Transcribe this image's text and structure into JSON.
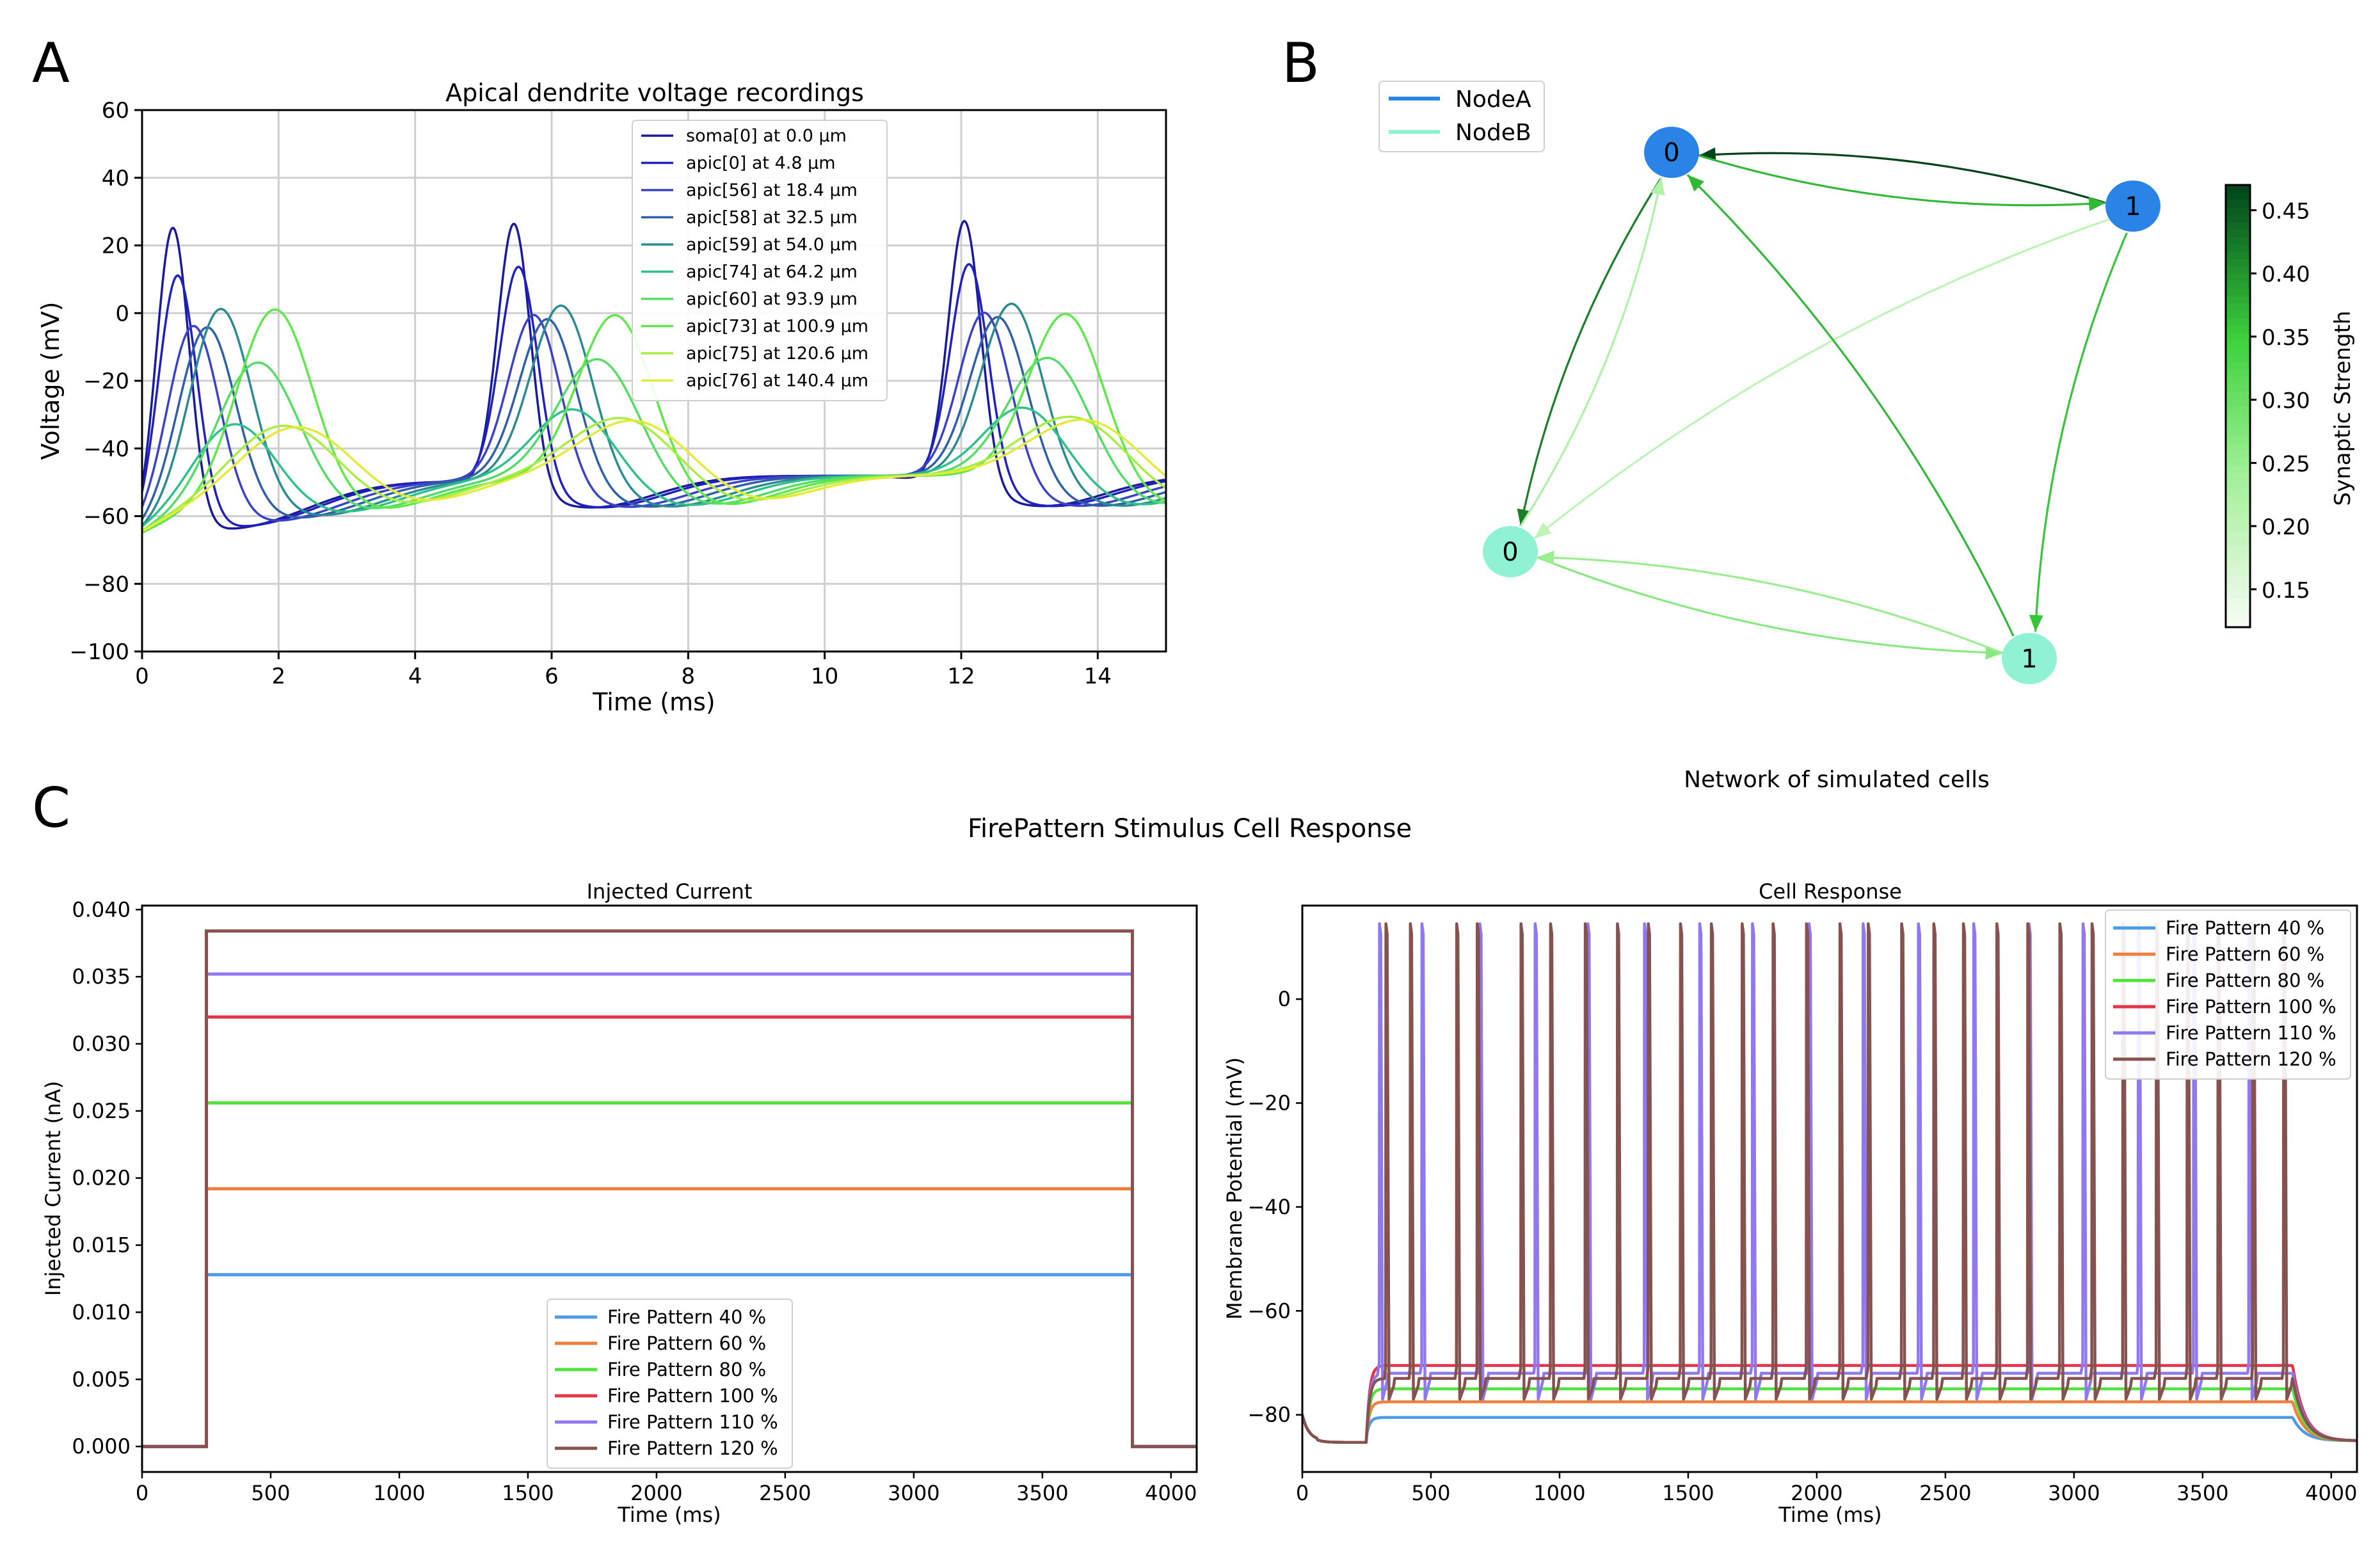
{
  "panel_labels": [
    "A",
    "B",
    "C"
  ],
  "figure_title": "FirePattern Stimulus Cell Response",
  "chart_data": [
    {
      "id": "A",
      "type": "line",
      "title": "Apical dendrite voltage recordings",
      "xlabel": "Time (ms)",
      "ylabel": "Voltage (mV)",
      "xlim": [
        0,
        15
      ],
      "ylim": [
        -100,
        60
      ],
      "xticks": [
        0,
        2,
        4,
        6,
        8,
        10,
        12,
        14
      ],
      "yticks": [
        -100,
        -80,
        -60,
        -40,
        -20,
        0,
        20,
        40,
        60
      ],
      "ytick_labels": [
        "−100",
        "−80",
        "−60",
        "−40",
        "−20",
        "0",
        "20",
        "40",
        "60"
      ],
      "grid": true,
      "legend_position": "upper-center",
      "spike_times": [
        0.0,
        5.0,
        11.6
      ],
      "series": [
        {
          "name": "soma[0] at 0.0 μm",
          "color": "#1a1a9a",
          "peak": 25,
          "delay": 0.45,
          "width": 0.24,
          "trough": -57,
          "trough_delay": 1.6
        },
        {
          "name": "apic[0] at 4.8 μm",
          "color": "#2020c0",
          "peak": 10,
          "delay": 0.52,
          "width": 0.28,
          "trough": -56,
          "trough_delay": 1.75
        },
        {
          "name": "apic[56] at 18.4 μm",
          "color": "#3b43c4",
          "peak": -7,
          "delay": 0.75,
          "width": 0.38,
          "trough": -54,
          "trough_delay": 2.1
        },
        {
          "name": "apic[58] at 32.5 μm",
          "color": "#2f5fa8",
          "peak": -9,
          "delay": 0.95,
          "width": 0.42,
          "trough": -52.5,
          "trough_delay": 2.4
        },
        {
          "name": "apic[59] at 54.0 μm",
          "color": "#2a8b90",
          "peak": -5,
          "delay": 1.15,
          "width": 0.45,
          "trough": -51.5,
          "trough_delay": 2.7
        },
        {
          "name": "apic[74] at 64.2 μm",
          "color": "#2fc089",
          "peak": -40,
          "delay": 1.35,
          "width": 0.6,
          "trough": -52,
          "trough_delay": 2.9
        },
        {
          "name": "apic[60] at 93.9 μm",
          "color": "#55dc66",
          "peak": -23,
          "delay": 1.7,
          "width": 0.6,
          "trough": -51,
          "trough_delay": 3.2
        },
        {
          "name": "apic[73] at 100.9 μm",
          "color": "#5ee84a",
          "peak": -8,
          "delay": 1.95,
          "width": 0.55,
          "trough": -50,
          "trough_delay": 3.4
        },
        {
          "name": "apic[75] at 120.6 μm",
          "color": "#a9ee44",
          "peak": -43,
          "delay": 2.1,
          "width": 0.8,
          "trough": -51,
          "trough_delay": 3.6
        },
        {
          "name": "apic[76] at 140.4 μm",
          "color": "#e4ea3a",
          "peak": -44,
          "delay": 2.3,
          "width": 0.85,
          "trough": -51,
          "trough_delay": 3.8
        }
      ]
    },
    {
      "id": "B",
      "type": "network",
      "xlabel": "Network of simulated cells",
      "legend_position": "upper-left",
      "legend": [
        {
          "name": "NodeA",
          "color": "#2a84e6"
        },
        {
          "name": "NodeB",
          "color": "#8ef2d3"
        }
      ],
      "colorbar": {
        "label": "Synaptic Strength",
        "range": [
          0.12,
          0.47
        ],
        "ticks": [
          "0.15",
          "0.20",
          "0.25",
          "0.30",
          "0.35",
          "0.40",
          "0.45"
        ],
        "tick_values": [
          0.15,
          0.2,
          0.25,
          0.3,
          0.35,
          0.4,
          0.45
        ]
      },
      "nodes": [
        {
          "id": "A0",
          "label": "0",
          "group": "NodeA"
        },
        {
          "id": "A1",
          "label": "1",
          "group": "NodeA"
        },
        {
          "id": "B0",
          "label": "0",
          "group": "NodeB"
        },
        {
          "id": "B1",
          "label": "1",
          "group": "NodeB"
        }
      ],
      "edges": [
        {
          "source": "A1",
          "target": "A0",
          "weight": 0.47
        },
        {
          "source": "A0",
          "target": "A1",
          "weight": 0.37
        },
        {
          "source": "A0",
          "target": "B0",
          "weight": 0.42
        },
        {
          "source": "B0",
          "target": "A0",
          "weight": 0.22
        },
        {
          "source": "A1",
          "target": "B0",
          "weight": 0.2
        },
        {
          "source": "A1",
          "target": "B1",
          "weight": 0.36
        },
        {
          "source": "B1",
          "target": "A0",
          "weight": 0.37
        },
        {
          "source": "B0",
          "target": "B1",
          "weight": 0.27
        },
        {
          "source": "B1",
          "target": "B0",
          "weight": 0.25
        }
      ]
    },
    {
      "id": "C1",
      "type": "line",
      "title": "Injected Current",
      "xlabel": "Time (ms)",
      "ylabel": "Injected Current (nA)",
      "xlim": [
        0,
        4100
      ],
      "ylim": [
        -0.0019,
        0.0403
      ],
      "xticks": [
        0,
        500,
        1000,
        1500,
        2000,
        2500,
        3000,
        3500,
        4000
      ],
      "yticks": [
        0.0,
        0.005,
        0.01,
        0.015,
        0.02,
        0.025,
        0.03,
        0.035,
        0.04
      ],
      "ytick_labels": [
        "0.000",
        "0.005",
        "0.010",
        "0.015",
        "0.020",
        "0.025",
        "0.030",
        "0.035",
        "0.040"
      ],
      "grid": false,
      "legend_position": "lower-center",
      "step_on": 250,
      "step_off": 3850,
      "series": [
        {
          "name": "Fire Pattern 40 %",
          "color": "#4c9be8",
          "value": 0.0128
        },
        {
          "name": "Fire Pattern 60 %",
          "color": "#f07f3e",
          "value": 0.0192
        },
        {
          "name": "Fire Pattern 80 %",
          "color": "#4fe33c",
          "value": 0.0256
        },
        {
          "name": "Fire Pattern 100 %",
          "color": "#e4344a",
          "value": 0.032
        },
        {
          "name": "Fire Pattern 110 %",
          "color": "#8f78f0",
          "value": 0.0352
        },
        {
          "name": "Fire Pattern 120 %",
          "color": "#85524f",
          "value": 0.0384
        }
      ]
    },
    {
      "id": "C2",
      "type": "line",
      "title": "Cell Response",
      "xlabel": "Time (ms)",
      "ylabel": "Membrane Potential (mV)",
      "xlim": [
        0,
        4100
      ],
      "ylim": [
        -91,
        18
      ],
      "xticks": [
        0,
        500,
        1000,
        1500,
        2000,
        2500,
        3000,
        3500,
        4000
      ],
      "yticks": [
        -80,
        -60,
        -40,
        -20,
        0
      ],
      "ytick_labels": [
        "−80",
        "−60",
        "−40",
        "−20",
        "0"
      ],
      "grid": false,
      "legend_position": "upper-right",
      "rest": -85,
      "spike_peak": 14.5,
      "step_on": 250,
      "step_off": 3850,
      "series": [
        {
          "name": "Fire Pattern 40 %",
          "color": "#4c9be8",
          "plateau": -80.5,
          "spikes": []
        },
        {
          "name": "Fire Pattern 60 %",
          "color": "#f07f3e",
          "plateau": -77.5,
          "spikes": []
        },
        {
          "name": "Fire Pattern 80 %",
          "color": "#4fe33c",
          "plateau": -75,
          "spikes": []
        },
        {
          "name": "Fire Pattern 100 %",
          "color": "#e4344a",
          "plateau": -70.5,
          "spikes": []
        },
        {
          "name": "Fire Pattern 110 %",
          "color": "#8f78f0",
          "plateau": -72,
          "spikes": [
            300,
            465,
            690,
            905,
            1110,
            1330,
            1545,
            1750,
            1970,
            2180,
            2395,
            2610,
            2825,
            3035,
            3250,
            3465,
            3680
          ]
        },
        {
          "name": "Fire Pattern 120 %",
          "color": "#85524f",
          "plateau": -73,
          "spikes": [
            325,
            420,
            600,
            680,
            850,
            965,
            1100,
            1225,
            1345,
            1470,
            1590,
            1710,
            1830,
            1960,
            2090,
            2200,
            2330,
            2455,
            2570,
            2700,
            2820,
            2945,
            3070,
            3190,
            3320,
            3440,
            3560,
            3695,
            3815
          ]
        }
      ]
    }
  ]
}
